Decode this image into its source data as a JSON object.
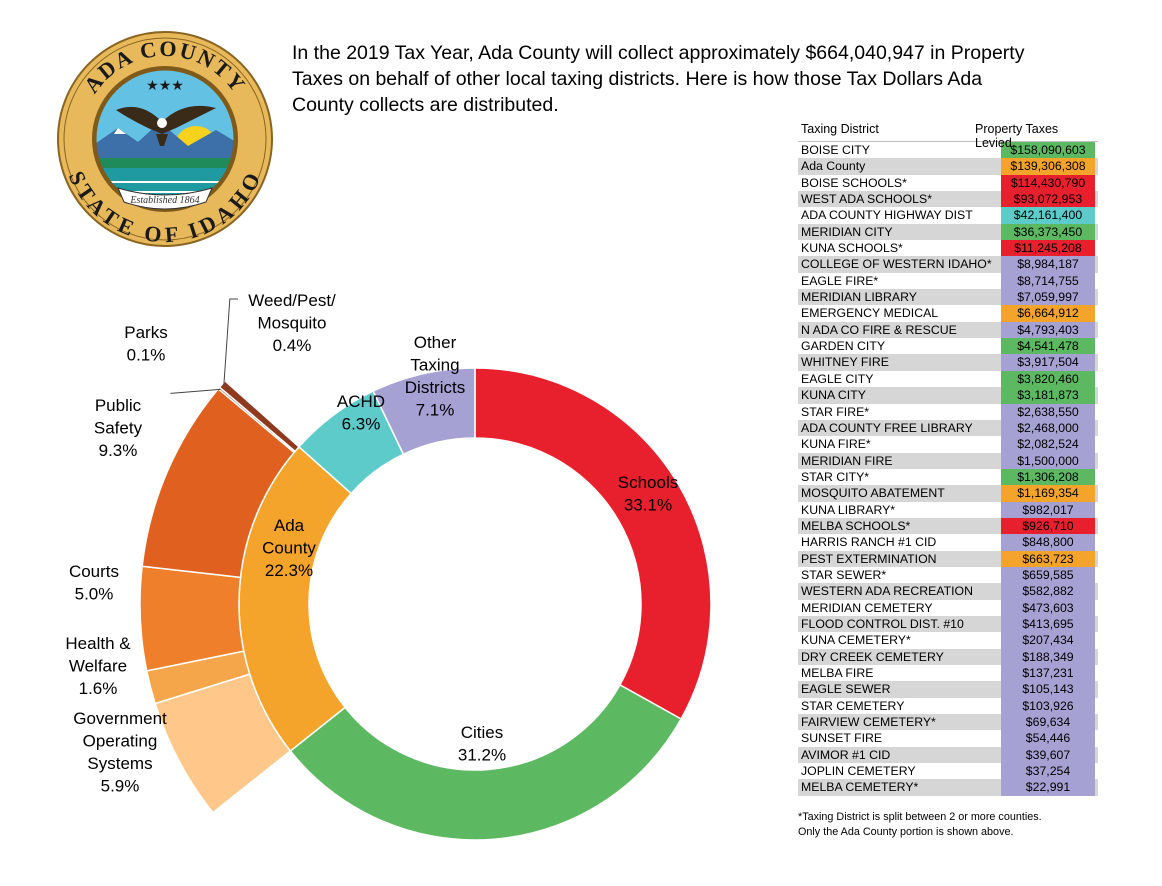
{
  "seal": {
    "top_text": "ADA COUNTY",
    "bottom_text": "STATE OF IDAHO",
    "ribbon_text": "Established 1864",
    "stars": "★★★"
  },
  "intro": "In the 2019 Tax Year, Ada County will collect approximately $664,040,947 in Property Taxes on behalf of other local taxing districts. Here is how those Tax Dollars Ada County collects are distributed.",
  "colors": {
    "schools": "#E8202E",
    "cities": "#5DB961",
    "ada_county": "#F5A42B",
    "achd": "#5ECBCB",
    "other": "#A6A1D3",
    "public_safety": "#E06020",
    "courts": "#F07F2B",
    "health_welfare": "#F5A64A",
    "gov_systems": "#FFC88A",
    "parks": "#B8461E",
    "weed_pest": "#8F3A1E"
  },
  "chart_data": {
    "type": "pie",
    "inner": [
      {
        "label": "Schools",
        "value": 33.1,
        "value_label": "33.1%",
        "color": "#E8202E"
      },
      {
        "label": "Cities",
        "value": 31.2,
        "value_label": "31.2%",
        "color": "#5DB961"
      },
      {
        "label": "Ada County",
        "value": 22.3,
        "value_label": "22.3%",
        "color": "#F5A42B"
      },
      {
        "label": "ACHD",
        "value": 6.3,
        "value_label": "6.3%",
        "color": "#5ECBCB"
      },
      {
        "label": "Other Taxing Districts",
        "value": 7.1,
        "value_label": "7.1%",
        "color": "#A6A1D3"
      }
    ],
    "ada_breakdown": [
      {
        "label": "Government Operating Systems",
        "value": 5.9,
        "value_label": "5.9%",
        "color": "#FFC88A"
      },
      {
        "label": "Health & Welfare",
        "value": 1.6,
        "value_label": "1.6%",
        "color": "#F5A64A"
      },
      {
        "label": "Courts",
        "value": 5.0,
        "value_label": "5.0%",
        "color": "#F07F2B"
      },
      {
        "label": "Public Safety",
        "value": 9.3,
        "value_label": "9.3%",
        "color": "#E06020"
      },
      {
        "label": "Parks",
        "value": 0.1,
        "value_label": "0.1%",
        "color": "#B8461E"
      },
      {
        "label": "Weed/Pest/ Mosquito",
        "value": 0.4,
        "value_label": "0.4%",
        "color": "#8F3A1E"
      }
    ]
  },
  "table": {
    "col_district": "Taxing District",
    "col_taxes": "Property Taxes Levied",
    "rows": [
      {
        "name": "BOISE CITY",
        "value": "$158,090,603",
        "color": "#5DB961"
      },
      {
        "name": "Ada County",
        "value": "$139,306,308",
        "color": "#F5A42B"
      },
      {
        "name": "BOISE SCHOOLS*",
        "value": "$114,430,790",
        "color": "#E8202E"
      },
      {
        "name": "WEST ADA SCHOOLS*",
        "value": "$93,072,953",
        "color": "#E8202E"
      },
      {
        "name": "ADA COUNTY HIGHWAY DIST",
        "value": "$42,161,400",
        "color": "#5ECBCB"
      },
      {
        "name": "MERIDIAN CITY",
        "value": "$36,373,450",
        "color": "#5DB961"
      },
      {
        "name": "KUNA SCHOOLS*",
        "value": "$11,245,208",
        "color": "#E8202E"
      },
      {
        "name": "COLLEGE OF WESTERN IDAHO*",
        "value": "$8,984,187",
        "color": "#A6A1D3"
      },
      {
        "name": "EAGLE FIRE*",
        "value": "$8,714,755",
        "color": "#A6A1D3"
      },
      {
        "name": "MERIDIAN LIBRARY",
        "value": "$7,059,997",
        "color": "#A6A1D3"
      },
      {
        "name": "EMERGENCY MEDICAL",
        "value": "$6,664,912",
        "color": "#F5A42B"
      },
      {
        "name": "N ADA CO FIRE & RESCUE",
        "value": "$4,793,403",
        "color": "#A6A1D3"
      },
      {
        "name": "GARDEN CITY",
        "value": "$4,541,478",
        "color": "#5DB961"
      },
      {
        "name": "WHITNEY FIRE",
        "value": "$3,917,504",
        "color": "#A6A1D3"
      },
      {
        "name": "EAGLE CITY",
        "value": "$3,820,460",
        "color": "#5DB961"
      },
      {
        "name": "KUNA CITY",
        "value": "$3,181,873",
        "color": "#5DB961"
      },
      {
        "name": "STAR FIRE*",
        "value": "$2,638,550",
        "color": "#A6A1D3"
      },
      {
        "name": "ADA COUNTY FREE LIBRARY",
        "value": "$2,468,000",
        "color": "#A6A1D3"
      },
      {
        "name": "KUNA FIRE*",
        "value": "$2,082,524",
        "color": "#A6A1D3"
      },
      {
        "name": "MERIDIAN FIRE",
        "value": "$1,500,000",
        "color": "#A6A1D3"
      },
      {
        "name": "STAR CITY*",
        "value": "$1,306,208",
        "color": "#5DB961"
      },
      {
        "name": "MOSQUITO ABATEMENT",
        "value": "$1,169,354",
        "color": "#F5A42B"
      },
      {
        "name": "KUNA LIBRARY*",
        "value": "$982,017",
        "color": "#A6A1D3"
      },
      {
        "name": "MELBA SCHOOLS*",
        "value": "$926,710",
        "color": "#E8202E"
      },
      {
        "name": "HARRIS RANCH #1 CID",
        "value": "$848,800",
        "color": "#A6A1D3"
      },
      {
        "name": "PEST EXTERMINATION",
        "value": "$663,723",
        "color": "#F5A42B"
      },
      {
        "name": "STAR SEWER*",
        "value": "$659,585",
        "color": "#A6A1D3"
      },
      {
        "name": "WESTERN ADA RECREATION",
        "value": "$582,882",
        "color": "#A6A1D3"
      },
      {
        "name": "MERIDIAN CEMETERY",
        "value": "$473,603",
        "color": "#A6A1D3"
      },
      {
        "name": "FLOOD CONTROL DIST. #10",
        "value": "$413,695",
        "color": "#A6A1D3"
      },
      {
        "name": "KUNA CEMETERY*",
        "value": "$207,434",
        "color": "#A6A1D3"
      },
      {
        "name": "DRY CREEK CEMETERY",
        "value": "$188,349",
        "color": "#A6A1D3"
      },
      {
        "name": "MELBA FIRE",
        "value": "$137,231",
        "color": "#A6A1D3"
      },
      {
        "name": "EAGLE SEWER",
        "value": "$105,143",
        "color": "#A6A1D3"
      },
      {
        "name": "STAR CEMETERY",
        "value": "$103,926",
        "color": "#A6A1D3"
      },
      {
        "name": "FAIRVIEW CEMETERY*",
        "value": "$69,634",
        "color": "#A6A1D3"
      },
      {
        "name": "SUNSET FIRE",
        "value": "$54,446",
        "color": "#A6A1D3"
      },
      {
        "name": "AVIMOR #1 CID",
        "value": "$39,607",
        "color": "#A6A1D3"
      },
      {
        "name": "JOPLIN CEMETERY",
        "value": "$37,254",
        "color": "#A6A1D3"
      },
      {
        "name": "MELBA CEMETERY*",
        "value": "$22,991",
        "color": "#A6A1D3"
      }
    ]
  },
  "footnote": {
    "line1": "*Taxing District is split between 2 or more counties.",
    "line2": "Only the Ada County portion is shown above."
  }
}
